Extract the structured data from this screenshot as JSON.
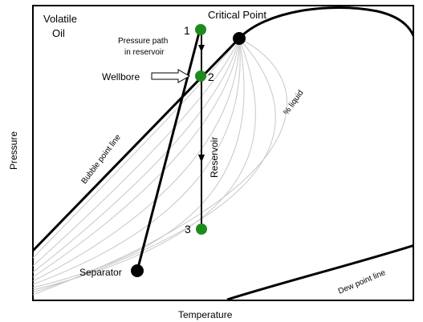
{
  "diagram": {
    "title": "Volatile",
    "title_line2": "Oil",
    "critical_point_label": "Critical Point",
    "pressure_path_label_line1": "Pressure path",
    "pressure_path_label_line2": "in reservoir",
    "wellbore_label": "Wellbore",
    "reservoir_label": "Reservoir",
    "liquid_label": "% liquid",
    "bubble_point_label": "Bubble point line",
    "dew_point_label": "Dew point line",
    "separator_label": "Separator",
    "x_axis_label": "Temperature",
    "y_axis_label": "Pressure",
    "points": [
      {
        "id": "1",
        "label": "1",
        "color": "#1e8b1e"
      },
      {
        "id": "2",
        "label": "2",
        "color": "#1e8b1e"
      },
      {
        "id": "3",
        "label": "3",
        "color": "#1e8b1e"
      }
    ],
    "colors": {
      "envelope": "#000000",
      "quality_lines": "#c8c8c8",
      "path_points": "#1e8b1e",
      "critical_point": "#000000",
      "separator_point": "#000000"
    }
  }
}
